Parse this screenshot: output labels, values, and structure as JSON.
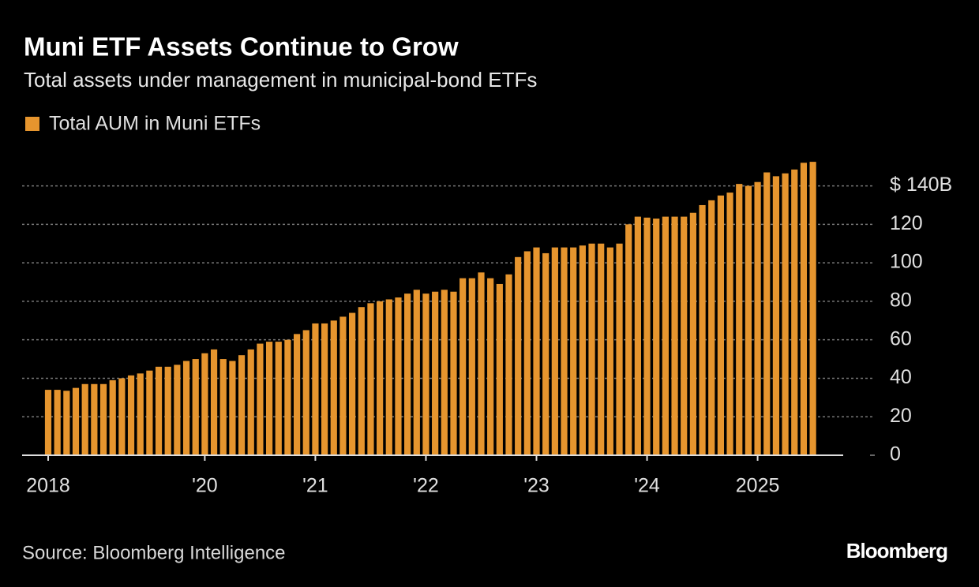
{
  "chart_data": {
    "type": "bar",
    "title": "Muni ETF Assets Continue to Grow",
    "subtitle": "Total assets under management in municipal-bond ETFs",
    "source": "Source: Bloomberg Intelligence",
    "brand": "Bloomberg",
    "legend": "top-left",
    "grid": true,
    "series": [
      {
        "name": "Total AUM in Muni ETFs",
        "color": "#e6952e",
        "values": [
          34,
          34,
          33.5,
          35,
          37,
          37,
          37,
          39,
          40,
          41.5,
          42.5,
          44,
          46,
          46,
          47,
          49,
          50,
          53,
          55,
          50,
          49,
          52,
          55,
          58,
          59,
          59,
          60,
          63,
          65,
          68.5,
          68.5,
          70,
          72,
          74,
          77,
          79,
          80,
          81,
          82,
          84,
          86,
          84,
          85,
          86,
          85,
          92,
          92,
          95,
          92,
          89,
          94,
          103,
          106,
          108,
          105,
          108,
          108,
          108,
          109,
          110,
          110,
          108,
          110,
          120,
          124,
          123.5,
          123,
          124,
          124,
          124,
          126,
          130,
          132.5,
          135,
          136.5,
          141,
          140,
          142,
          147,
          145,
          146.5,
          148.5,
          152,
          152.5
        ]
      }
    ],
    "categories": [
      "2018",
      null,
      null,
      null,
      null,
      null,
      null,
      null,
      null,
      null,
      null,
      null,
      null,
      null,
      null,
      null,
      null,
      "'20",
      null,
      null,
      null,
      null,
      null,
      null,
      null,
      null,
      null,
      null,
      null,
      "'21",
      null,
      null,
      null,
      null,
      null,
      null,
      null,
      null,
      null,
      null,
      null,
      "'22",
      null,
      null,
      null,
      null,
      null,
      null,
      null,
      null,
      null,
      null,
      null,
      "'23",
      null,
      null,
      null,
      null,
      null,
      null,
      null,
      null,
      null,
      null,
      null,
      "'24",
      null,
      null,
      null,
      null,
      null,
      null,
      null,
      null,
      null,
      null,
      null,
      "2025",
      null,
      null,
      null,
      null,
      null,
      null
    ],
    "ylim": [
      0,
      155
    ],
    "yticks": [
      0,
      20,
      40,
      60,
      80,
      100,
      120,
      {
        "value": 140,
        "label": "$ 140B"
      }
    ]
  }
}
